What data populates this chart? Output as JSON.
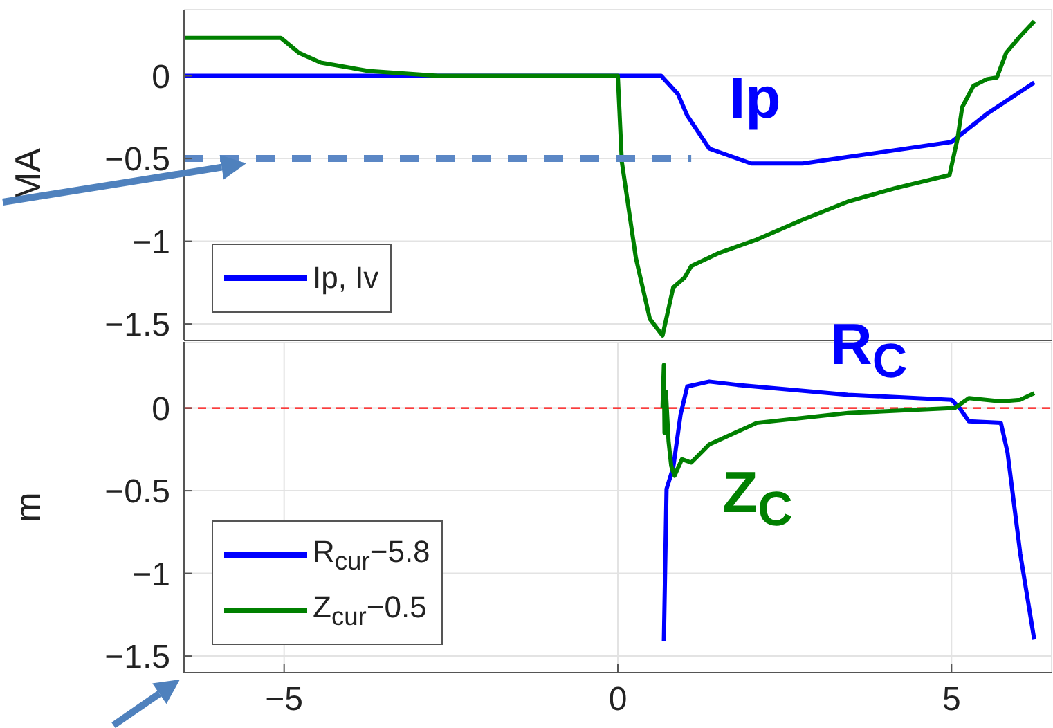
{
  "chart_data": [
    {
      "type": "line",
      "ylabel": "MA",
      "xlim": [
        -6.5,
        6.5
      ],
      "xticks": [
        -5,
        0,
        5
      ],
      "ylim": [
        -1.6,
        0.4
      ],
      "yticks": [
        -1.5,
        -1,
        -0.5,
        0
      ],
      "tick_labels": "y",
      "grid": true,
      "legend": "bottom left",
      "series": [
        {
          "name": "Ip, Iv",
          "color": "#0000ff",
          "x": [
            -6.5,
            0.65,
            0.9,
            1.04,
            1.37,
            2.0,
            2.77,
            3.45,
            4.15,
            5.0,
            5.53,
            6.24
          ],
          "values": [
            0,
            0,
            -0.11,
            -0.24,
            -0.44,
            -0.53,
            -0.53,
            -0.49,
            -0.45,
            -0.4,
            -0.23,
            -0.04
          ]
        },
        {
          "color": "#008000",
          "x": [
            -6.5,
            -5.05,
            -4.78,
            -4.45,
            -3.74,
            -2.7,
            0,
            0.06,
            0.27,
            0.48,
            0.67,
            0.83,
            1.0,
            1.1,
            1.52,
            2.08,
            2.77,
            3.45,
            4.15,
            4.97,
            5.09,
            5.16,
            5.33,
            5.53,
            5.68,
            5.82,
            6.03,
            6.24
          ],
          "values": [
            0.23,
            0.23,
            0.14,
            0.08,
            0.03,
            0,
            0,
            -0.52,
            -1.1,
            -1.47,
            -1.57,
            -1.28,
            -1.22,
            -1.15,
            -1.07,
            -0.99,
            -0.87,
            -0.76,
            -0.68,
            -0.6,
            -0.38,
            -0.19,
            -0.06,
            -0.02,
            -0.01,
            0.14,
            0.24,
            0.33
          ]
        },
        {
          "color": "#5b87c5",
          "line_style": "dashed",
          "x": [
            -6.5,
            1.1
          ],
          "values": [
            -0.5,
            -0.5
          ]
        }
      ],
      "annotations": [
        "Ip"
      ]
    },
    {
      "type": "line",
      "ylabel": "m",
      "xlim": [
        -6.5,
        6.5
      ],
      "xticks": [
        -5,
        0,
        5
      ],
      "ylim": [
        -1.6,
        0.4
      ],
      "yticks": [
        -1.5,
        -1,
        -0.5,
        0
      ],
      "grid": true,
      "legend": "bottom left",
      "ref_lines": [
        {
          "axis": "y",
          "value": 0,
          "color": "#ff0000",
          "line_style": "dashed"
        }
      ],
      "series": [
        {
          "name": "R$_{cur}$−5.8",
          "color": "#0000ff",
          "x": [
            0.69,
            0.73,
            0.83,
            0.94,
            1.04,
            1.37,
            1.79,
            3.45,
            5.0,
            5.12,
            5.26,
            5.74,
            5.84,
            6.03,
            6.24
          ],
          "values": [
            -1.41,
            -0.49,
            -0.36,
            -0.04,
            0.13,
            0.16,
            0.14,
            0.08,
            0.05,
            0,
            -0.08,
            -0.09,
            -0.27,
            -0.88,
            -1.4
          ]
        },
        {
          "name": "Z$_{cur}$−0.5",
          "color": "#008000",
          "x": [
            0.67,
            0.69,
            0.7,
            0.72,
            0.76,
            0.8,
            0.85,
            0.96,
            1.1,
            1.37,
            2.08,
            3.45,
            5.05,
            5.26,
            5.74,
            6.03,
            6.24
          ],
          "values": [
            0,
            0.26,
            -0.15,
            0.1,
            -0.2,
            -0.35,
            -0.41,
            -0.31,
            -0.33,
            -0.22,
            -0.09,
            -0.03,
            0,
            0.06,
            0.04,
            0.05,
            0.09
          ]
        }
      ],
      "annotations": [
        "R$_{C}$",
        "Z$_{C}$"
      ]
    }
  ]
}
